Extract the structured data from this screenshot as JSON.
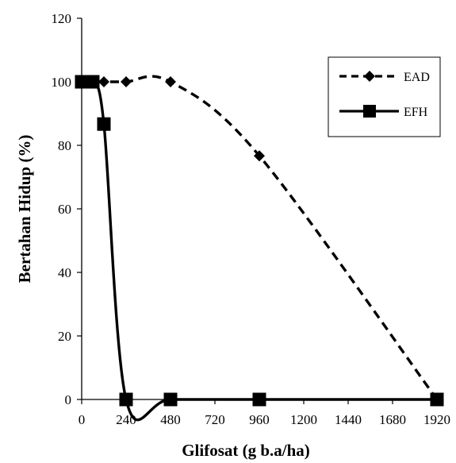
{
  "chart_data": {
    "type": "line",
    "xlabel": "Glifosat (g b.a/ha)",
    "ylabel": "Bertahan Hidup (%)",
    "xlim": [
      0,
      1920
    ],
    "ylim": [
      0,
      120
    ],
    "x_ticks": [
      0,
      240,
      480,
      720,
      960,
      1200,
      1440,
      1680,
      1920
    ],
    "y_ticks": [
      0,
      20,
      40,
      60,
      80,
      100,
      120
    ],
    "legend_position": "top-right",
    "grid": false,
    "series": [
      {
        "name": "EAD",
        "line_style": "dashed",
        "marker": "diamond",
        "color": "#000000",
        "points": [
          [
            0,
            100
          ],
          [
            30,
            100
          ],
          [
            60,
            100
          ],
          [
            120,
            100
          ],
          [
            240,
            100
          ],
          [
            480,
            100
          ],
          [
            960,
            76.7
          ],
          [
            1920,
            0
          ]
        ]
      },
      {
        "name": "EFH",
        "line_style": "solid",
        "marker": "square",
        "color": "#000000",
        "points": [
          [
            0,
            100
          ],
          [
            30,
            100
          ],
          [
            60,
            100
          ],
          [
            120,
            86.7
          ],
          [
            240,
            0
          ],
          [
            480,
            0
          ],
          [
            960,
            0
          ],
          [
            1920,
            0
          ]
        ]
      }
    ]
  }
}
